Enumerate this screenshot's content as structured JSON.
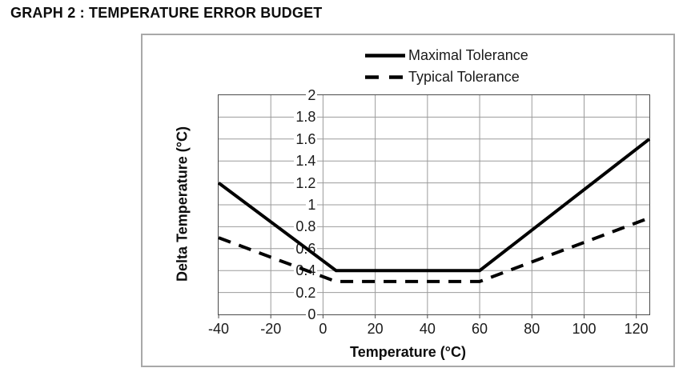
{
  "page": {
    "title": "GRAPH 2 : TEMPERATURE ERROR BUDGET"
  },
  "chart_data": {
    "type": "line",
    "title": "GRAPH 2 : TEMPERATURE ERROR BUDGET",
    "xlabel": "Temperature (°C)",
    "ylabel": "Delta Temperature (°C)",
    "xlim": [
      -40,
      125
    ],
    "ylim": [
      0,
      2
    ],
    "x_ticks": [
      -40,
      -20,
      0,
      20,
      40,
      60,
      80,
      100,
      120
    ],
    "x_tick_labels": [
      "-40",
      "-20",
      "0",
      "20",
      "40",
      "60",
      "80",
      "100",
      "120"
    ],
    "y_ticks": [
      0,
      0.2,
      0.4,
      0.6,
      0.8,
      1,
      1.2,
      1.4,
      1.6,
      1.8,
      2
    ],
    "y_tick_labels": [
      "0",
      "0.2",
      "0.4",
      "0.6",
      "0.8",
      "1",
      "1.2",
      "1.4",
      "1.6",
      "1.8",
      "2"
    ],
    "grid": true,
    "legend_position": "top",
    "series": [
      {
        "name": "Maximal Tolerance",
        "line_style": "solid",
        "points": [
          [
            -40,
            1.2
          ],
          [
            5,
            0.4
          ],
          [
            60,
            0.4
          ],
          [
            125,
            1.6
          ]
        ]
      },
      {
        "name": "Typical Tolerance",
        "line_style": "dashed",
        "points": [
          [
            -40,
            0.7
          ],
          [
            5,
            0.3
          ],
          [
            60,
            0.3
          ],
          [
            125,
            0.88
          ]
        ]
      }
    ],
    "colors": {
      "line": "#000000",
      "grid": "#9b9b9b",
      "plot_border": "#4a4a4a",
      "figure_border": "#a8a8a8",
      "text": "#1a1a1a"
    }
  }
}
